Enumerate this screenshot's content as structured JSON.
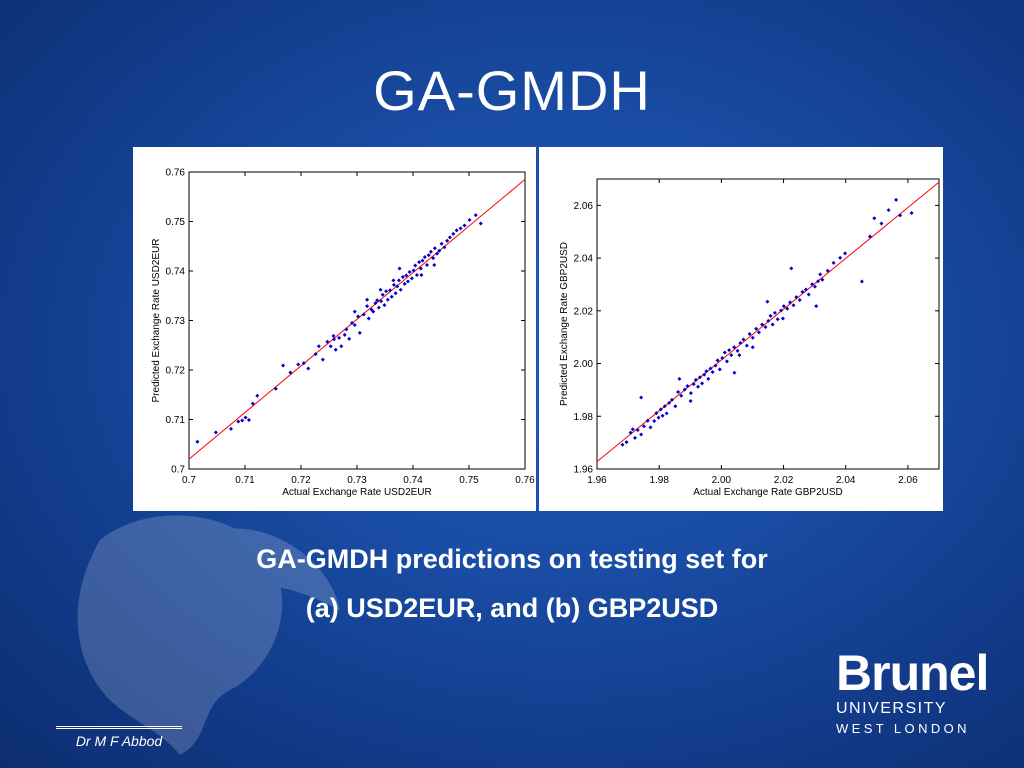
{
  "slide": {
    "title": "GA-GMDH",
    "caption_line1": "GA-GMDH predictions on testing set for",
    "caption_line2": "(a) USD2EUR, and (b) GBP2USD",
    "author": "Dr M F Abbod",
    "logo": {
      "brand": "Brunel",
      "line1": "UNIVERSITY",
      "line2": "WEST LONDON"
    }
  },
  "colors": {
    "background": "#1a4ea6",
    "points": "#0000cc",
    "fit_line": "#ff0000"
  },
  "chart_data": [
    {
      "type": "scatter",
      "xlabel": "Actual Exchange Rate USD2EUR",
      "ylabel": "Predicted Exchange Rate USD2EUR",
      "xlim": [
        0.7,
        0.76
      ],
      "ylim": [
        0.7,
        0.76
      ],
      "xticks": [
        "0.7",
        "0.71",
        "0.72",
        "0.73",
        "0.74",
        "0.75",
        "0.76"
      ],
      "yticks": [
        "0.7",
        "0.71",
        "0.72",
        "0.73",
        "0.74",
        "0.75",
        "0.76"
      ],
      "fit_line": [
        [
          0.7,
          0.702
        ],
        [
          0.76,
          0.7585
        ]
      ],
      "x": [
        0.7015,
        0.7048,
        0.7075,
        0.7088,
        0.7095,
        0.7101,
        0.7107,
        0.7114,
        0.7122,
        0.7155,
        0.7168,
        0.7181,
        0.7195,
        0.7205,
        0.7213,
        0.7226,
        0.7232,
        0.7239,
        0.7247,
        0.7253,
        0.7259,
        0.7262,
        0.7268,
        0.7272,
        0.7278,
        0.7281,
        0.7286,
        0.7291,
        0.7296,
        0.7302,
        0.7305,
        0.7312,
        0.7318,
        0.7321,
        0.7326,
        0.7329,
        0.7333,
        0.7336,
        0.7339,
        0.7343,
        0.7346,
        0.7349,
        0.7352,
        0.7355,
        0.7359,
        0.7362,
        0.7366,
        0.7369,
        0.7372,
        0.7375,
        0.7378,
        0.7382,
        0.7385,
        0.7388,
        0.7391,
        0.7394,
        0.7398,
        0.7401,
        0.7404,
        0.7407,
        0.7411,
        0.7414,
        0.7417,
        0.7421,
        0.7425,
        0.7428,
        0.7432,
        0.7436,
        0.7439,
        0.7443,
        0.7447,
        0.7451,
        0.7456,
        0.7461,
        0.7466,
        0.7472,
        0.7478,
        0.7485,
        0.7492,
        0.7501,
        0.7512,
        0.7521,
        0.7318,
        0.7342,
        0.7365,
        0.7296,
        0.7415,
        0.7438,
        0.7258,
        0.7376
      ],
      "y": [
        0.7055,
        0.7074,
        0.7081,
        0.7096,
        0.7098,
        0.7104,
        0.7099,
        0.7132,
        0.7148,
        0.7162,
        0.7209,
        0.7195,
        0.7211,
        0.7214,
        0.7203,
        0.7232,
        0.7248,
        0.7221,
        0.7257,
        0.7248,
        0.7262,
        0.7241,
        0.7265,
        0.7248,
        0.7271,
        0.7282,
        0.7263,
        0.7295,
        0.7291,
        0.7308,
        0.7275,
        0.7312,
        0.7329,
        0.7304,
        0.7322,
        0.7318,
        0.7335,
        0.7341,
        0.7326,
        0.7339,
        0.7352,
        0.7331,
        0.7359,
        0.7342,
        0.7361,
        0.7348,
        0.7372,
        0.7355,
        0.7369,
        0.7381,
        0.7362,
        0.7388,
        0.7374,
        0.7391,
        0.7379,
        0.7398,
        0.7385,
        0.7401,
        0.7411,
        0.7392,
        0.7418,
        0.7405,
        0.7421,
        0.7428,
        0.7412,
        0.7432,
        0.7439,
        0.7426,
        0.7446,
        0.7435,
        0.7441,
        0.7455,
        0.7448,
        0.7461,
        0.7468,
        0.7475,
        0.7482,
        0.7486,
        0.7492,
        0.7503,
        0.7513,
        0.7496,
        0.7342,
        0.7362,
        0.7381,
        0.7318,
        0.7392,
        0.7412,
        0.7269,
        0.7405
      ]
    },
    {
      "type": "scatter",
      "xlabel": "Actual Exchange Rate GBP2USD",
      "ylabel": "Predicted Exchange Rate GBP2USD",
      "xlim": [
        1.96,
        2.07
      ],
      "ylim": [
        1.96,
        2.07
      ],
      "xticks": [
        "1.96",
        "1.98",
        "2.00",
        "2.02",
        "2.04",
        "2.06"
      ],
      "yticks": [
        "1.96",
        "1.98",
        "2.00",
        "2.02",
        "2.04",
        "2.06"
      ],
      "fit_line": [
        [
          1.96,
          1.9628
        ],
        [
          2.07,
          2.0688
        ]
      ],
      "x": [
        1.9682,
        1.9695,
        1.9708,
        1.9715,
        1.9722,
        1.9731,
        1.9742,
        1.9751,
        1.9763,
        1.9772,
        1.9784,
        1.9791,
        1.9798,
        1.9805,
        1.9811,
        1.9818,
        1.9824,
        1.9832,
        1.9841,
        1.9852,
        1.9861,
        1.9871,
        1.9882,
        1.9891,
        1.9902,
        1.9911,
        1.9918,
        1.9925,
        1.9931,
        1.9938,
        1.9945,
        1.9952,
        1.9958,
        1.9965,
        1.9972,
        1.9981,
        1.9988,
        1.9995,
        2.0003,
        2.0011,
        2.0018,
        2.0025,
        2.0032,
        2.0041,
        2.0052,
        2.0061,
        2.0071,
        2.0082,
        2.0091,
        2.0101,
        2.0112,
        2.0121,
        2.0131,
        2.0142,
        2.0151,
        2.0158,
        2.0165,
        2.0172,
        2.0181,
        2.0192,
        2.0201,
        2.0212,
        2.0221,
        2.0232,
        2.0241,
        2.0252,
        2.0261,
        2.0272,
        2.0281,
        2.0292,
        2.0301,
        2.0311,
        2.0318,
        2.0325,
        2.0342,
        2.0361,
        2.0382,
        2.0398,
        2.0452,
        2.0478,
        2.0492,
        2.0515,
        2.0538,
        2.0562,
        2.0575,
        2.0612,
        1.9742,
        1.9901,
        2.0058,
        2.0148,
        2.0225,
        2.0305,
        1.9865,
        2.0101,
        2.0198,
        2.0042
      ],
      "y": [
        1.9692,
        1.9702,
        1.9738,
        1.9751,
        1.9718,
        1.9748,
        1.9731,
        1.9762,
        1.9783,
        1.9758,
        1.9782,
        1.9812,
        1.9795,
        1.9826,
        1.9802,
        1.9838,
        1.9811,
        1.9851,
        1.9862,
        1.9838,
        1.9892,
        1.9878,
        1.9901,
        1.9915,
        1.9888,
        1.9922,
        1.9938,
        1.9912,
        1.9948,
        1.9925,
        1.9958,
        1.9971,
        1.9942,
        1.9981,
        1.9968,
        1.9992,
        2.0012,
        1.9978,
        2.0021,
        2.0042,
        2.0008,
        2.0051,
        2.0032,
        2.0062,
        2.0048,
        2.0078,
        2.0091,
        2.0068,
        2.0112,
        2.0098,
        2.0132,
        2.0118,
        2.0148,
        2.0138,
        2.0162,
        2.0181,
        2.0148,
        2.0192,
        2.0168,
        2.0201,
        2.0218,
        2.0208,
        2.0232,
        2.0221,
        2.0252,
        2.0241,
        2.0272,
        2.0281,
        2.0262,
        2.0301,
        2.0292,
        2.0312,
        2.0338,
        2.0318,
        2.0352,
        2.0382,
        2.0401,
        2.0418,
        2.0311,
        2.0482,
        2.0551,
        2.0531,
        2.0582,
        2.0621,
        2.0562,
        2.0571,
        1.9871,
        1.9858,
        2.0032,
        2.0235,
        2.0361,
        2.0218,
        1.9942,
        2.0062,
        2.0171,
        1.9965
      ]
    }
  ]
}
